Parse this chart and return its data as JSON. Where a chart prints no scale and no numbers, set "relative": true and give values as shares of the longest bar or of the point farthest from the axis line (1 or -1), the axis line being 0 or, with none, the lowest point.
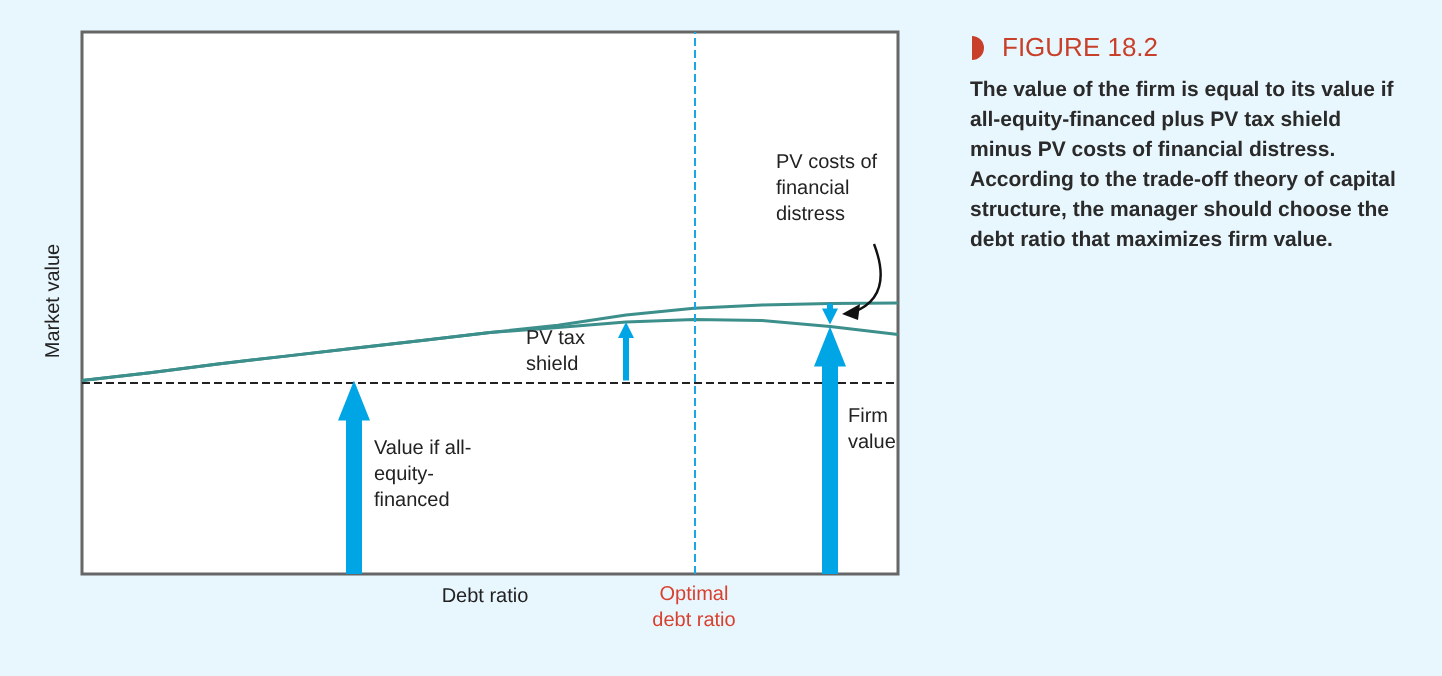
{
  "chart_data": {
    "type": "line",
    "title": "FIGURE 18.2",
    "subtitle": "The value of the firm is equal to its value if all-equity-financed plus PV tax shield minus PV costs of financial distress. According to the trade-off theory of capital structure, the manager should choose the debt ratio that maximizes firm value.",
    "xlabel": "Debt ratio",
    "ylabel": "Market value",
    "relative": true,
    "categories": [
      null,
      null,
      null,
      null,
      null,
      null,
      null,
      null,
      null,
      null,
      null,
      null,
      null
    ],
    "series": [
      {
        "color": "#3d8f8c",
        "values": [
          0.714,
          0.743,
          0.775,
          0.804,
          0.833,
          0.862,
          0.891,
          0.918,
          0.956,
          0.981,
          0.993,
          0.998,
          1
        ]
      },
      {
        "color": "#3d8f8c",
        "values": [
          0.714,
          0.743,
          0.775,
          0.804,
          0.833,
          0.862,
          0.891,
          0.91,
          0.93,
          0.939,
          0.935,
          0.913,
          0.884
        ]
      }
    ],
    "ref_lines": [
      {
        "axis": "y",
        "value": 0.714,
        "color": "#222222",
        "line_style": "dashed"
      }
    ],
    "annotations": [
      "PV tax shield",
      "Value if all-equity-financed",
      "Firm value",
      "PV costs of financial distress",
      "Optimal debt ratio"
    ],
    "grid": false,
    "marker": "none",
    "line_style": "solid"
  }
}
